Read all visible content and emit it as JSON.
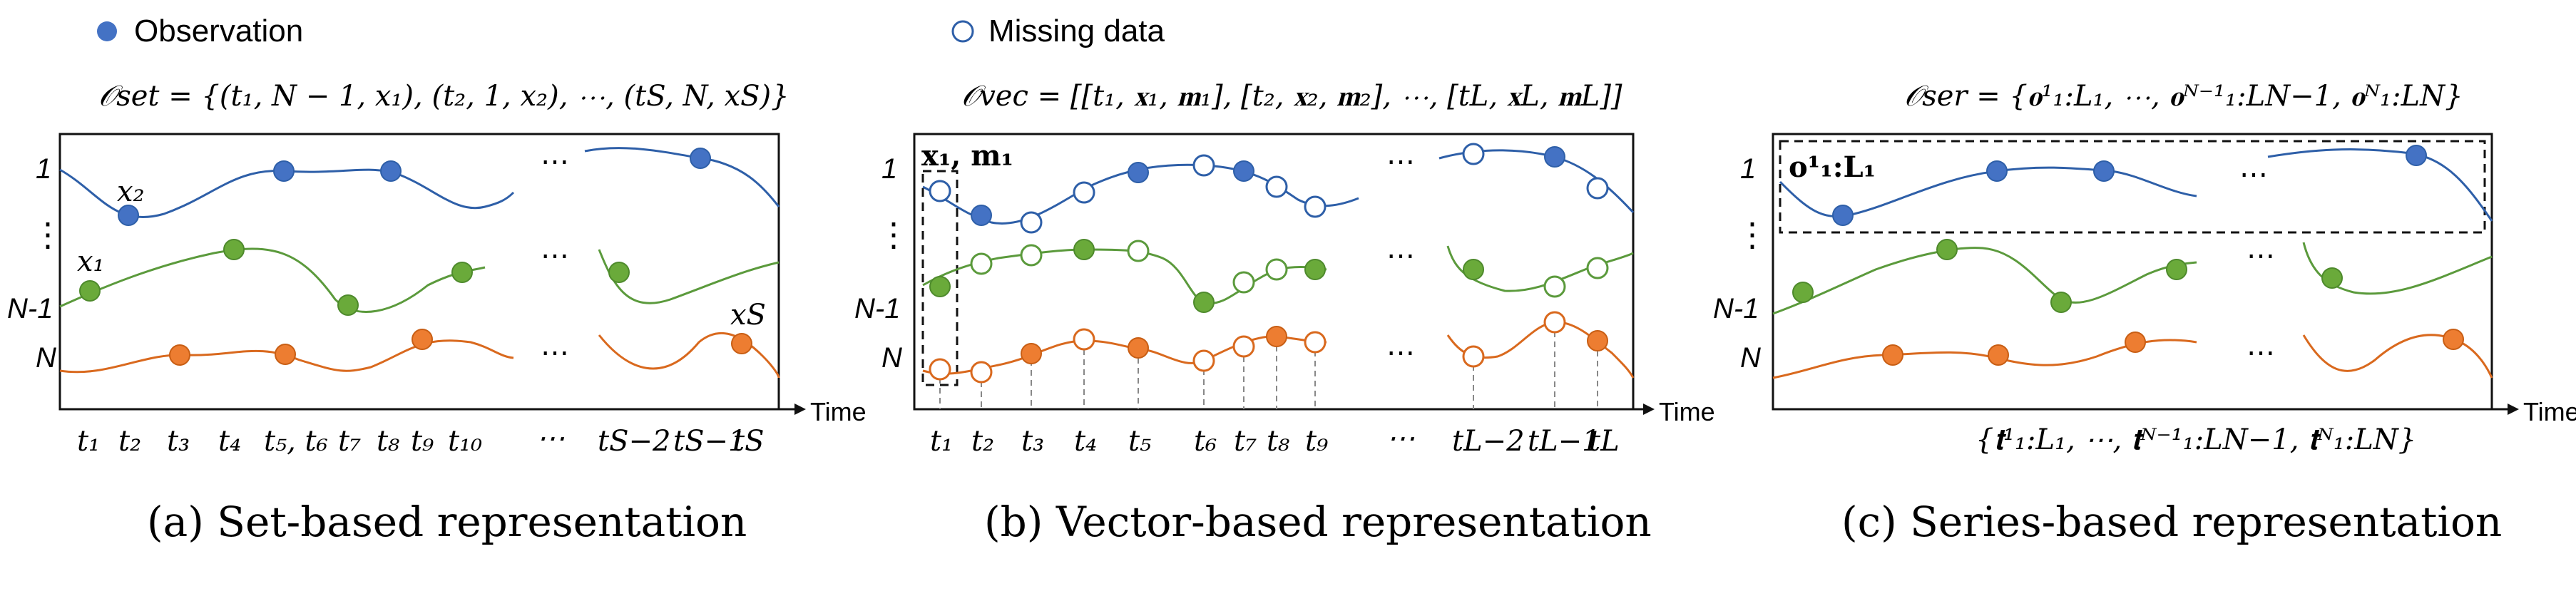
{
  "legend": {
    "observation_label": "Observation",
    "missing_label": "Missing data",
    "observation_color": "#4472c4",
    "missing_fill": "#ffffff"
  },
  "colors": {
    "blue": "#2e5fa8",
    "green": "#5b9a3c",
    "orange": "#d9691e",
    "observed_green": "#6aaa3a",
    "observed_orange": "#ed7d31",
    "observed_blue": "#4472c4"
  },
  "axis_label": "Time",
  "row_labels": [
    "1",
    "⋮",
    "N-1",
    "N"
  ],
  "panels": [
    {
      "id": "a",
      "formula": "𝒪set = {(t₁, N − 1, x₁), (t₂, 1, x₂), ⋯, (tS, N, xS)}",
      "caption": "(a) Set-based representation",
      "annotations": [
        "x₂",
        "x₁",
        "xS"
      ],
      "ticks": [
        "t₁",
        "t₂",
        "t₃",
        "t₄",
        "t₅, t₆",
        "t₇",
        "t₈",
        "t₉",
        "t₁₀",
        "⋯",
        "tS−2",
        "tS−1",
        "tS"
      ]
    },
    {
      "id": "b",
      "formula": "𝒪vec = [[t₁, 𝐱₁, 𝐦₁], [t₂, 𝐱₂, 𝐦₂], ⋯, [tL, 𝐱L, 𝐦L]]",
      "caption": "(b) Vector-based representation",
      "annotations": [
        "𝐱₁, 𝐦₁"
      ],
      "ticks": [
        "t₁",
        "t₂",
        "t₃",
        "t₄",
        "t₅",
        "t₆",
        "t₇",
        "t₈",
        "t₉",
        "⋯",
        "tL−2",
        "tL−1",
        "tL"
      ]
    },
    {
      "id": "c",
      "formula": "𝒪ser = {𝐨¹₁:L₁, ⋯, 𝐨ᴺ⁻¹₁:LN−1, 𝐨ᴺ₁:LN}",
      "caption": "(c) Series-based representation",
      "annotations": [
        "𝐨¹₁:L₁"
      ],
      "ticks_formula": "{𝐭¹₁:L₁, ⋯, 𝐭ᴺ⁻¹₁:LN−1, 𝐭ᴺ₁:LN}"
    }
  ]
}
